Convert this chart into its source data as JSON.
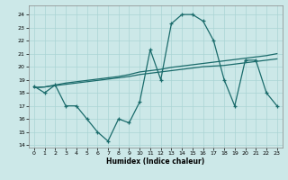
{
  "xlabel": "Humidex (Indice chaleur)",
  "bg_color": "#cce8e8",
  "grid_color": "#aad4d4",
  "line_color": "#1a6b6b",
  "xlim": [
    -0.5,
    23.5
  ],
  "ylim": [
    13.8,
    24.7
  ],
  "yticks": [
    14,
    15,
    16,
    17,
    18,
    19,
    20,
    21,
    22,
    23,
    24
  ],
  "xticks": [
    0,
    1,
    2,
    3,
    4,
    5,
    6,
    7,
    8,
    9,
    10,
    11,
    12,
    13,
    14,
    15,
    16,
    17,
    18,
    19,
    20,
    21,
    22,
    23
  ],
  "trend1_y": [
    18.4,
    18.45,
    18.55,
    18.65,
    18.75,
    18.85,
    18.95,
    19.05,
    19.15,
    19.25,
    19.4,
    19.5,
    19.6,
    19.7,
    19.8,
    19.9,
    20.0,
    20.05,
    20.1,
    20.2,
    20.3,
    20.4,
    20.5,
    20.6
  ],
  "trend2_y": [
    18.4,
    18.45,
    18.6,
    18.75,
    18.85,
    18.95,
    19.05,
    19.15,
    19.25,
    19.4,
    19.6,
    19.7,
    19.8,
    19.95,
    20.05,
    20.15,
    20.25,
    20.35,
    20.45,
    20.55,
    20.65,
    20.75,
    20.85,
    21.0
  ],
  "main_y": [
    18.5,
    18.0,
    18.6,
    17.0,
    17.0,
    16.0,
    15.0,
    14.3,
    16.0,
    15.7,
    17.3,
    21.3,
    19.0,
    23.3,
    24.0,
    24.0,
    23.5,
    22.0,
    19.0,
    17.0,
    20.5,
    20.5,
    18.0,
    17.0
  ]
}
